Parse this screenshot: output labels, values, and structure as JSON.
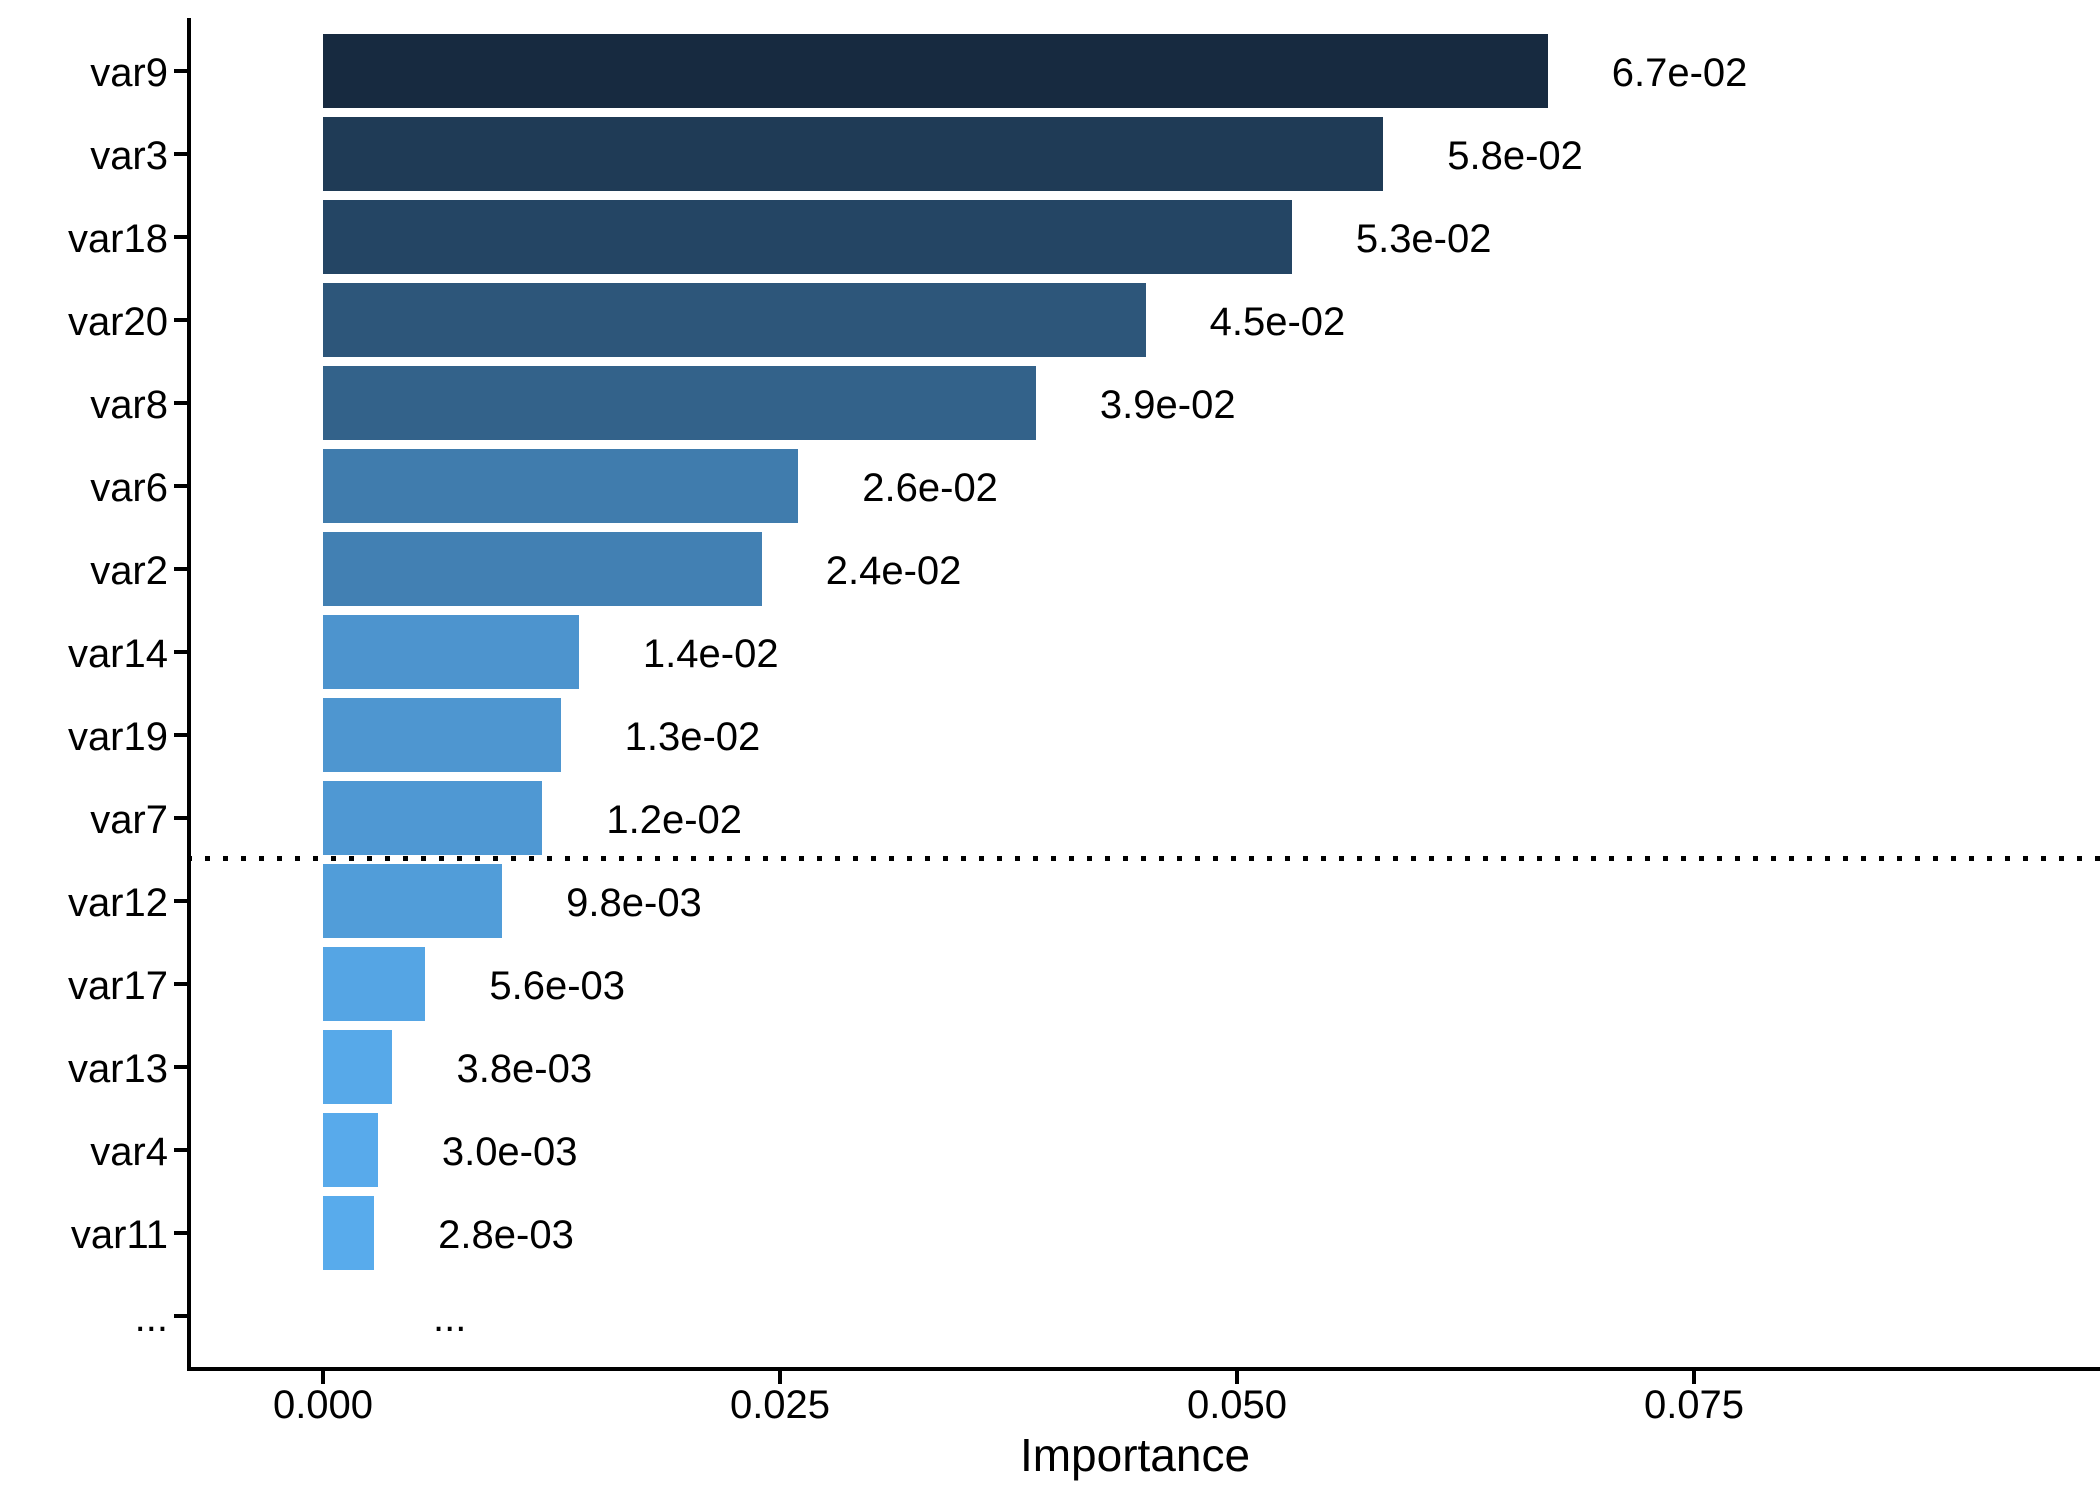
{
  "chart_data": {
    "type": "bar",
    "orientation": "horizontal",
    "title": "",
    "xlabel": "Importance",
    "ylabel": "",
    "grid": "off",
    "legend": "none",
    "x_axis": {
      "tick_values": [
        0.0,
        0.025,
        0.05,
        0.075
      ],
      "tick_labels": [
        "0.000",
        "0.025",
        "0.050",
        "0.075"
      ],
      "range": [
        -0.0075,
        0.0972
      ]
    },
    "value_label_format": "scientific-2sig",
    "threshold_separator": {
      "style": "dotted",
      "after_category": "var7",
      "color": "#000000"
    },
    "axis_color": "#000000",
    "text_color": "#000000",
    "rows": [
      {
        "category": "var9",
        "value": 0.067,
        "label": "6.7e-02",
        "color": "#172a40"
      },
      {
        "category": "var3",
        "value": 0.058,
        "label": "5.8e-02",
        "color": "#1f3b56"
      },
      {
        "category": "var18",
        "value": 0.053,
        "label": "5.3e-02",
        "color": "#244564"
      },
      {
        "category": "var20",
        "value": 0.045,
        "label": "4.5e-02",
        "color": "#2d567a"
      },
      {
        "category": "var8",
        "value": 0.039,
        "label": "3.9e-02",
        "color": "#33628a"
      },
      {
        "category": "var6",
        "value": 0.026,
        "label": "2.6e-02",
        "color": "#407cad"
      },
      {
        "category": "var2",
        "value": 0.024,
        "label": "2.4e-02",
        "color": "#4280b3"
      },
      {
        "category": "var14",
        "value": 0.014,
        "label": "1.4e-02",
        "color": "#4d94ce"
      },
      {
        "category": "var19",
        "value": 0.013,
        "label": "1.3e-02",
        "color": "#4e96d0"
      },
      {
        "category": "var7",
        "value": 0.012,
        "label": "1.2e-02",
        "color": "#4f98d3"
      },
      {
        "category": "var12",
        "value": 0.0098,
        "label": "9.8e-03",
        "color": "#519dd9"
      },
      {
        "category": "var17",
        "value": 0.0056,
        "label": "5.6e-03",
        "color": "#55a5e4"
      },
      {
        "category": "var13",
        "value": 0.0038,
        "label": "3.8e-03",
        "color": "#57a9e9"
      },
      {
        "category": "var4",
        "value": 0.003,
        "label": "3.0e-03",
        "color": "#58aaeb"
      },
      {
        "category": "var11",
        "value": 0.0028,
        "label": "2.8e-03",
        "color": "#58abec"
      },
      {
        "category": "...",
        "value": null,
        "label": "...",
        "color": null
      }
    ]
  }
}
